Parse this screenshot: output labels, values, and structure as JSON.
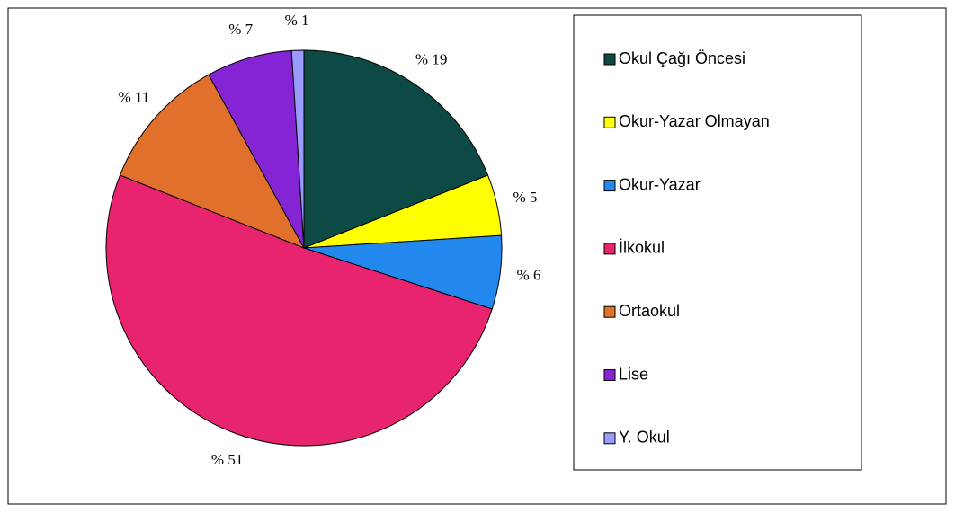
{
  "chart_data": {
    "type": "pie",
    "categories": [
      "Okul Çağı Öncesi",
      "Okur-Yazar Olmayan",
      "Okur-Yazar",
      "İlkokul",
      "Ortaokul",
      "Lise",
      "Y. Okul"
    ],
    "values": [
      19,
      5,
      6,
      51,
      11,
      7,
      1
    ],
    "value_labels": [
      "% 19",
      "% 5",
      "% 6",
      "% 51",
      "% 11",
      "% 7",
      "% 1"
    ],
    "colors": [
      "#0d4a45",
      "#ffff00",
      "#2288ee",
      "#e8246e",
      "#e0702c",
      "#8424d4",
      "#9a9aff"
    ],
    "legend": "right"
  }
}
